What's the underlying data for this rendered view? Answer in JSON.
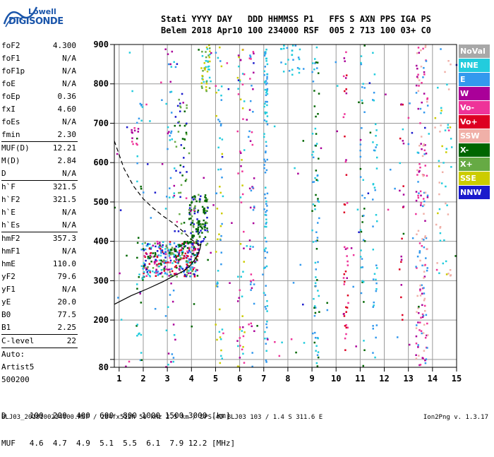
{
  "logo": {
    "line1": "Lowell",
    "line2": "DIGISONDE"
  },
  "header": {
    "line1": "Stati YYYY DAY   DDD HHMMSS P1   FFS S AXN PPS IGA PS",
    "line2": "Belem 2018 Apr10 100 234000 RSF  005 2 713 100 03+ C0"
  },
  "params": [
    {
      "name": "foF2",
      "value": "4.300"
    },
    {
      "name": "foF1",
      "value": "N/A"
    },
    {
      "name": "foF1p",
      "value": "N/A"
    },
    {
      "name": "foE",
      "value": "N/A"
    },
    {
      "name": "foEp",
      "value": "0.36"
    },
    {
      "name": "fxI",
      "value": "4.60"
    },
    {
      "name": "foEs",
      "value": "N/A"
    },
    {
      "name": "fmin",
      "value": "2.30"
    },
    {
      "sep": true
    },
    {
      "name": "MUF(D)",
      "value": "12.21"
    },
    {
      "name": "M(D)",
      "value": "2.84"
    },
    {
      "name": "D",
      "value": "N/A"
    },
    {
      "sep": true
    },
    {
      "name": "h`F",
      "value": "321.5"
    },
    {
      "name": "h`F2",
      "value": "321.5"
    },
    {
      "name": "h`E",
      "value": "N/A"
    },
    {
      "name": "h`Es",
      "value": "N/A"
    },
    {
      "sep": true
    },
    {
      "name": "hmF2",
      "value": "357.3"
    },
    {
      "name": "hmF1",
      "value": "N/A"
    },
    {
      "name": "hmE",
      "value": "110.0"
    },
    {
      "name": "yF2",
      "value": "79.6"
    },
    {
      "name": "yF1",
      "value": "N/A"
    },
    {
      "name": "yE",
      "value": "20.0"
    },
    {
      "name": "B0",
      "value": "77.5"
    },
    {
      "name": "B1",
      "value": "2.25"
    },
    {
      "sep": true
    },
    {
      "name": "C-level",
      "value": "22"
    },
    {
      "sep": true
    },
    {
      "plain": "Auto:"
    },
    {
      "plain": "Artist5"
    },
    {
      "plain": "500200"
    }
  ],
  "legend": [
    {
      "label": "NoVal",
      "color": "#a8a8a8"
    },
    {
      "label": "NNE",
      "color": "#22ccdd"
    },
    {
      "label": "E",
      "color": "#3399ee"
    },
    {
      "label": "W",
      "color": "#aa0099"
    },
    {
      "label": "Vo-",
      "color": "#ee3399"
    },
    {
      "label": "Vo+",
      "color": "#dd0022"
    },
    {
      "label": "SSW",
      "color": "#f0b0a8"
    },
    {
      "label": "X-",
      "color": "#006600"
    },
    {
      "label": "X+",
      "color": "#66aa44"
    },
    {
      "label": "SSE",
      "color": "#cccc00"
    },
    {
      "label": "NNW",
      "color": "#1a1acc"
    }
  ],
  "muf_table": {
    "d_line": "D     100  200  400  600  800 1000 1500 3000 [km]",
    "muf_line": "MUF   4.6  4.7  4.9  5.1  5.5  6.1  7.9 12.2 [MHz]"
  },
  "footer": {
    "left": "BLJ03_2018100234000.RSF / 284fx512h 50 kHz 2.5 km / DPS-4D BLJ03 103 / 1.4 S 311.6 E",
    "right": "Ion2Png v. 1.3.17"
  },
  "chart_data": {
    "type": "scatter",
    "xlim": [
      0.8,
      15.0
    ],
    "ylim": [
      80,
      900
    ],
    "x_ticks": [
      1,
      2,
      3,
      4,
      5,
      6,
      7,
      8,
      9,
      10,
      11,
      12,
      13,
      14,
      15
    ],
    "y_ticks": [
      80,
      100,
      200,
      300,
      400,
      500,
      600,
      700,
      800,
      900
    ],
    "y_tick_labels": [
      80,
      200,
      300,
      400,
      500,
      600,
      700,
      800,
      900
    ],
    "grid": true,
    "profile_solid": [
      [
        0.8,
        240
      ],
      [
        1.5,
        262
      ],
      [
        2.2,
        280
      ],
      [
        2.8,
        297
      ],
      [
        3.2,
        310
      ],
      [
        3.6,
        322
      ],
      [
        3.9,
        335
      ],
      [
        4.1,
        350
      ],
      [
        4.25,
        365
      ],
      [
        4.35,
        380
      ],
      [
        4.4,
        395
      ]
    ],
    "profile_dashed": [
      [
        0.8,
        655
      ],
      [
        1.2,
        585
      ],
      [
        1.6,
        540
      ],
      [
        2.0,
        508
      ],
      [
        2.4,
        485
      ],
      [
        2.8,
        465
      ],
      [
        3.2,
        448
      ],
      [
        3.6,
        428
      ],
      [
        4.0,
        405
      ],
      [
        4.4,
        385
      ]
    ],
    "ordinary_trace": [
      [
        3.1,
        378
      ],
      [
        3.3,
        382
      ],
      [
        3.5,
        388
      ],
      [
        3.7,
        393
      ],
      [
        3.9,
        398
      ],
      [
        4.05,
        410
      ],
      [
        4.2,
        428
      ],
      [
        4.35,
        450
      ],
      [
        4.5,
        478
      ],
      [
        4.6,
        500
      ]
    ],
    "clusters": [
      {
        "x0": 2.0,
        "x1": 4.3,
        "y0": 310,
        "y1": 400,
        "n": 340,
        "colors": [
          "#3399ee",
          "#22ccdd",
          "#1a1acc",
          "#006600",
          "#66aa44",
          "#aa0099",
          "#ee3399",
          "#dd0022"
        ]
      },
      {
        "x0": 3.9,
        "x1": 4.7,
        "y0": 390,
        "y1": 520,
        "n": 110,
        "colors": [
          "#006600",
          "#66aa44",
          "#1a1acc"
        ]
      },
      {
        "x0": 3.3,
        "x1": 3.9,
        "y0": 420,
        "y1": 780,
        "n": 50,
        "colors": [
          "#1a1acc",
          "#006600",
          "#66aa44"
        ]
      },
      {
        "x0": 1.7,
        "x1": 2.0,
        "y0": 90,
        "y1": 780,
        "n": 40,
        "colors": [
          "#22ccdd",
          "#3399ee",
          "#006600"
        ]
      },
      {
        "x0": 1.5,
        "x1": 1.8,
        "y0": 640,
        "y1": 690,
        "n": 12,
        "colors": [
          "#aa0099",
          "#ee3399"
        ]
      },
      {
        "x0": 2.9,
        "x1": 3.3,
        "y0": 80,
        "y1": 900,
        "n": 55,
        "colors": [
          "#22ccdd",
          "#3399ee",
          "#aa0099"
        ]
      },
      {
        "x0": 4.4,
        "x1": 4.8,
        "y0": 780,
        "y1": 900,
        "n": 45,
        "colors": [
          "#cccc00",
          "#22ccdd",
          "#66aa44"
        ]
      },
      {
        "x0": 5.0,
        "x1": 5.3,
        "y0": 80,
        "y1": 900,
        "n": 55,
        "colors": [
          "#22ccdd",
          "#cccc00",
          "#3399ee"
        ]
      },
      {
        "x0": 5.9,
        "x1": 6.2,
        "y0": 80,
        "y1": 900,
        "n": 60,
        "colors": [
          "#cccc00",
          "#aa0099",
          "#22ccdd",
          "#ee3399"
        ]
      },
      {
        "x0": 6.4,
        "x1": 6.6,
        "y0": 80,
        "y1": 900,
        "n": 45,
        "colors": [
          "#ee3399",
          "#aa0099",
          "#3399ee"
        ]
      },
      {
        "x0": 7.0,
        "x1": 7.15,
        "y0": 80,
        "y1": 900,
        "n": 100,
        "colors": [
          "#3399ee",
          "#22ccdd"
        ]
      },
      {
        "x0": 7.6,
        "x1": 8.5,
        "y0": 820,
        "y1": 900,
        "n": 25,
        "colors": [
          "#3399ee",
          "#22ccdd"
        ]
      },
      {
        "x0": 9.0,
        "x1": 9.3,
        "y0": 80,
        "y1": 900,
        "n": 80,
        "colors": [
          "#22ccdd",
          "#006600",
          "#3399ee"
        ]
      },
      {
        "x0": 10.3,
        "x1": 10.5,
        "y0": 80,
        "y1": 900,
        "n": 45,
        "colors": [
          "#ee3399",
          "#aa0099",
          "#dd0022"
        ]
      },
      {
        "x0": 11.0,
        "x1": 11.2,
        "y0": 80,
        "y1": 900,
        "n": 40,
        "colors": [
          "#006600",
          "#22ccdd",
          "#3399ee"
        ]
      },
      {
        "x0": 11.5,
        "x1": 11.7,
        "y0": 80,
        "y1": 900,
        "n": 40,
        "colors": [
          "#3399ee",
          "#22ccdd"
        ]
      },
      {
        "x0": 12.6,
        "x1": 12.8,
        "y0": 200,
        "y1": 750,
        "n": 20,
        "colors": [
          "#dd0022",
          "#aa0099"
        ]
      },
      {
        "x0": 13.3,
        "x1": 13.8,
        "y0": 80,
        "y1": 900,
        "n": 160,
        "colors": [
          "#f0b0a8",
          "#aa0099",
          "#3399ee",
          "#ee3399"
        ]
      },
      {
        "x0": 14.1,
        "x1": 14.8,
        "y0": 300,
        "y1": 900,
        "n": 50,
        "colors": [
          "#f0b0a8",
          "#cccc00",
          "#22ccdd"
        ]
      },
      {
        "x0": 0.8,
        "x1": 15.0,
        "y0": 80,
        "y1": 900,
        "n": 120,
        "colors": [
          "#22ccdd",
          "#3399ee",
          "#aa0099",
          "#ee3399",
          "#1a1acc",
          "#006600"
        ]
      }
    ]
  }
}
